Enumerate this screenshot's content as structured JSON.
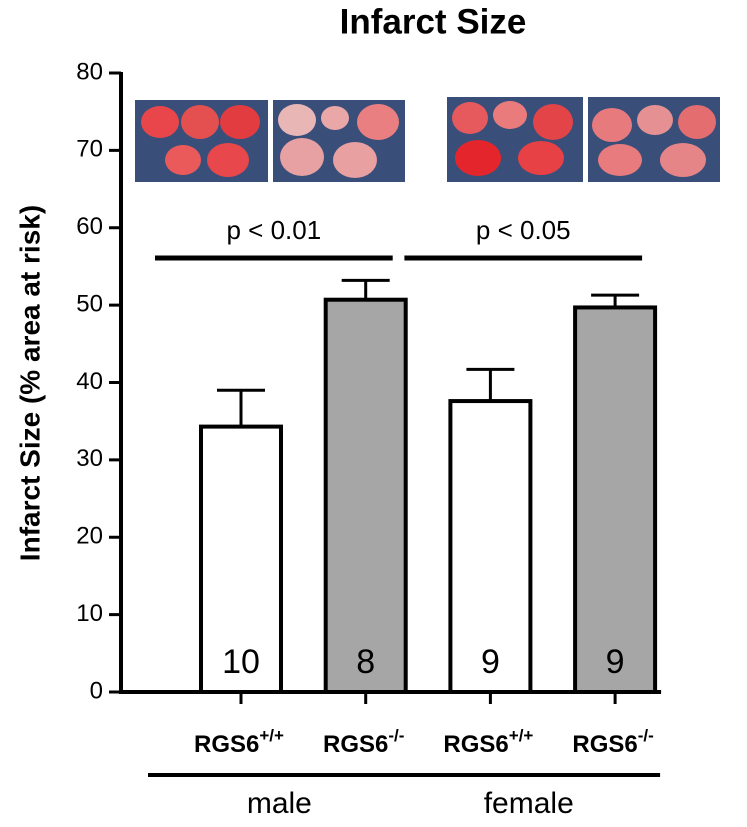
{
  "chart_data": {
    "type": "bar",
    "title": "Infarct Size",
    "y_label": "Infarct Size (% area at risk)",
    "categories": [
      "RGS6",
      "RGS6",
      "RGS6",
      "RGS6"
    ],
    "category_superscripts": [
      "+/+",
      "-/-",
      "+/+",
      "-/-"
    ],
    "values": [
      34.3,
      50.7,
      37.6,
      49.7
    ],
    "errors": [
      4.7,
      2.5,
      4.1,
      1.6
    ],
    "colors": [
      "#ffffff",
      "#a6a6a6",
      "#ffffff",
      "#a6a6a6"
    ],
    "sample_sizes": [
      10,
      8,
      9,
      9
    ],
    "groups": [
      {
        "label": "male",
        "from": 0,
        "to": 1
      },
      {
        "label": "female",
        "from": 2,
        "to": 3
      }
    ],
    "annotations": [
      {
        "text": "p < 0.01",
        "from": 0,
        "to": 1
      },
      {
        "text": "p < 0.05",
        "from": 2,
        "to": 3
      }
    ],
    "ylim": [
      0,
      80
    ],
    "yticks": [
      0,
      10,
      20,
      30,
      40,
      50,
      60,
      70,
      80
    ]
  }
}
